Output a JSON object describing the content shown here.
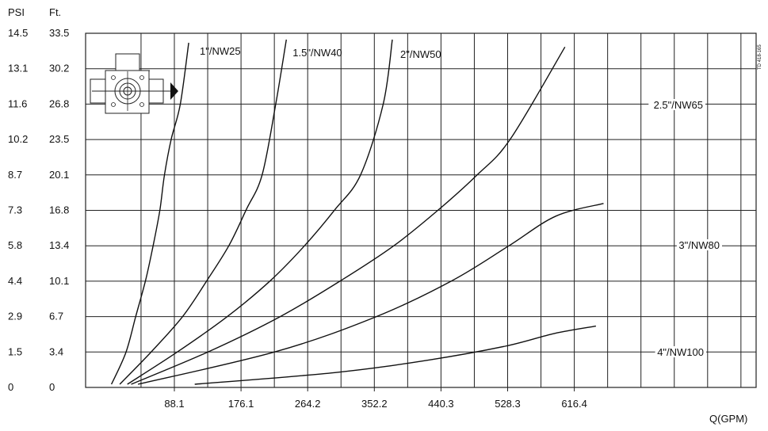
{
  "chart_data": {
    "type": "line",
    "title": "",
    "left_axis_header": "PSI",
    "right_axis_header": "Ft.",
    "xlabel": "Q(GPM)",
    "side_code": "TD 418-165",
    "x_ticks": [
      "88.1",
      "176.1",
      "264.2",
      "352.2",
      "440.3",
      "528.3",
      "616.4"
    ],
    "y_ticks_psi": [
      "0",
      "1.5",
      "2.9",
      "4.4",
      "5.8",
      "7.3",
      "8.7",
      "10.2",
      "11.6",
      "13.1",
      "14.5"
    ],
    "y_ticks_ft": [
      "0",
      "3.4",
      "6.7",
      "10.1",
      "13.4",
      "16.8",
      "20.1",
      "23.5",
      "26.8",
      "30.2",
      "33.5"
    ],
    "xlim": [
      0,
      660
    ],
    "ylim": [
      0,
      33.5
    ],
    "grid": true,
    "series": [
      {
        "name": "1\"/NW25",
        "x": [
          5,
          24,
          37,
          50,
          60,
          69,
          75,
          84,
          96,
          107
        ],
        "y": [
          0.3,
          3.3,
          6.7,
          10.1,
          13.4,
          16.8,
          20.1,
          23.5,
          26.8,
          32.6
        ]
      },
      {
        "name": "1.5\"/NW40",
        "x": [
          16,
          58,
          99,
          131,
          160,
          183,
          204,
          222,
          236
        ],
        "y": [
          0.3,
          3.4,
          6.7,
          10.1,
          13.4,
          16.8,
          20.1,
          26.8,
          32.9
        ]
      },
      {
        "name": "2\"/NW50",
        "x": [
          26,
          93,
          158,
          215,
          260,
          300,
          334,
          364,
          376
        ],
        "y": [
          0.3,
          3.4,
          6.7,
          10.1,
          13.4,
          16.8,
          20.1,
          26.8,
          32.9
        ]
      },
      {
        "name": "2.5\"/NW65",
        "x": [
          31,
          134,
          228,
          308,
          378,
          437,
          488,
          532,
          604
        ],
        "y": [
          0.3,
          3.4,
          6.7,
          10.1,
          13.4,
          16.8,
          20.1,
          23.5,
          32.2
        ]
      },
      {
        "name": "3\"/NW80",
        "x": [
          40,
          223,
          355,
          455,
          530,
          592,
          655
        ],
        "y": [
          0.3,
          3.4,
          6.7,
          10.1,
          13.4,
          16.2,
          17.4
        ]
      },
      {
        "name": "4\"/NW100",
        "x": [
          115,
          300,
          425,
          525,
          590,
          645
        ],
        "y": [
          0.3,
          1.4,
          2.6,
          3.9,
          5.1,
          5.8
        ]
      }
    ],
    "label_positions": [
      "top-right-of-curve",
      "top-right-of-curve",
      "top-right-of-curve",
      "on-gridline",
      "on-gridline",
      "on-gridline"
    ]
  }
}
